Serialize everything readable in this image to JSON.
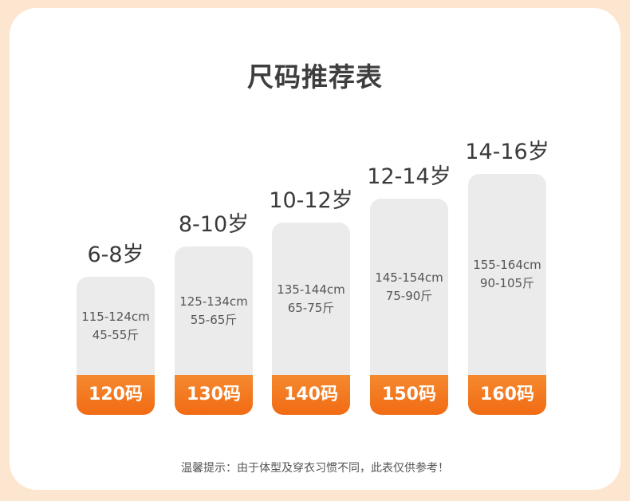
{
  "title": "尺码推荐表",
  "columns": [
    {
      "age": "6-8岁",
      "height": "115-124cm",
      "weight": "45-55斤",
      "size": "120码"
    },
    {
      "age": "8-10岁",
      "height": "125-134cm",
      "weight": "55-65斤",
      "size": "130码"
    },
    {
      "age": "10-12岁",
      "height": "135-144cm",
      "weight": "65-75斤",
      "size": "140码"
    },
    {
      "age": "12-14岁",
      "height": "145-154cm",
      "weight": "75-90斤",
      "size": "150码"
    },
    {
      "age": "14-16岁",
      "height": "155-164cm",
      "weight": "90-105斤",
      "size": "160码"
    }
  ],
  "note": "温馨提示：由于体型及穿衣习惯不同，此表仅供参考！"
}
